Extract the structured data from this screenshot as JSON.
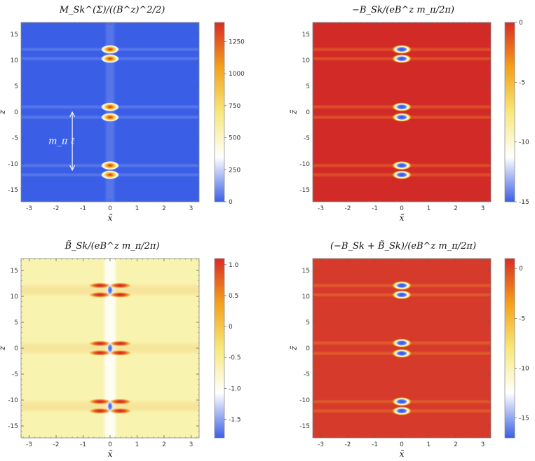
{
  "figure": {
    "layout": "2x2 density-plot grid"
  },
  "chart_data": [
    {
      "type": "heatmap",
      "title": "M_Sk^(Σ)/((B^z)^2/2)",
      "xlabel": "x̃",
      "ylabel": "z̃",
      "xlim": [
        -3.3,
        3.3
      ],
      "ylim": [
        -17.3,
        17.3
      ],
      "xticks": [
        "-3",
        "-2",
        "-1",
        "0",
        "1",
        "2",
        "3"
      ],
      "xtick_values": [
        -3,
        -2,
        -1,
        0,
        1,
        2,
        3
      ],
      "yticks": [
        "-15",
        "-10",
        "-5",
        "0",
        "5",
        "10",
        "15"
      ],
      "ytick_values": [
        -15,
        -10,
        -5,
        0,
        5,
        10,
        15
      ],
      "colorbar": {
        "min": 0,
        "max": 1400,
        "stops": [
          "#3a5fe6",
          "#ffffff",
          "#f7e87a",
          "#f4a11a",
          "#d92b25"
        ],
        "ticks": [
          "0",
          "250",
          "500",
          "750",
          "1000",
          "1250"
        ],
        "tick_values": [
          0,
          250,
          500,
          750,
          1000,
          1250
        ]
      },
      "background": "#3a5fe6",
      "features": [
        {
          "z": 12.1,
          "kind": "hot"
        },
        {
          "z": 10.3,
          "kind": "hot"
        },
        {
          "z": 1.0,
          "kind": "hot"
        },
        {
          "z": -1.0,
          "kind": "hot"
        },
        {
          "z": -10.3,
          "kind": "hot"
        },
        {
          "z": -12.1,
          "kind": "hot"
        }
      ],
      "annotation": {
        "text": "m_π ℓ",
        "arrow_x": -1.4,
        "arrow_from_z": 0,
        "arrow_to_z": -11.2
      }
    },
    {
      "type": "heatmap",
      "title": "−B_Sk/(eB^z m_π/2π)",
      "xlabel": "x̃",
      "ylabel": "z̃",
      "xlim": [
        -3.3,
        3.3
      ],
      "ylim": [
        -17.3,
        17.3
      ],
      "xticks": [
        "-3",
        "-2",
        "-1",
        "0",
        "1",
        "2",
        "3"
      ],
      "xtick_values": [
        -3,
        -2,
        -1,
        0,
        1,
        2,
        3
      ],
      "yticks": [
        "-15",
        "-10",
        "-5",
        "0",
        "5",
        "10",
        "15"
      ],
      "ytick_values": [
        -15,
        -10,
        -5,
        0,
        5,
        10,
        15
      ],
      "colorbar": {
        "min": -15,
        "max": 0,
        "stops": [
          "#3a5fe6",
          "#ffffff",
          "#f7e87a",
          "#f4a11a",
          "#d92b25"
        ],
        "ticks": [
          "-15",
          "-10",
          "-5",
          "0"
        ],
        "tick_values": [
          -15,
          -10,
          -5,
          0
        ]
      },
      "background": "#d22a27",
      "features": [
        {
          "z": 12.1,
          "kind": "cold"
        },
        {
          "z": 10.3,
          "kind": "cold"
        },
        {
          "z": 1.0,
          "kind": "cold"
        },
        {
          "z": -1.0,
          "kind": "cold"
        },
        {
          "z": -10.3,
          "kind": "cold"
        },
        {
          "z": -12.1,
          "kind": "cold"
        }
      ]
    },
    {
      "type": "heatmap",
      "title": "B̃_Sk/(eB^z m_π/2π)",
      "xlabel": "x̃",
      "ylabel": "z̃",
      "xlim": [
        -3.3,
        3.3
      ],
      "ylim": [
        -17.3,
        17.3
      ],
      "xticks": [
        "-3",
        "-2",
        "-1",
        "0",
        "1",
        "2",
        "3"
      ],
      "xtick_values": [
        -3,
        -2,
        -1,
        0,
        1,
        2,
        3
      ],
      "yticks": [
        "-15",
        "-10",
        "-5",
        "0",
        "5",
        "10",
        "15"
      ],
      "ytick_values": [
        -15,
        -10,
        -5,
        0,
        5,
        10,
        15
      ],
      "colorbar": {
        "min": -1.8,
        "max": 1.1,
        "stops": [
          "#3a5fe6",
          "#ffffff",
          "#f7e87a",
          "#f4a11a",
          "#d92b25"
        ],
        "ticks": [
          "-1.5",
          "-1.0",
          "-0.5",
          "0",
          "0.5",
          "1.0"
        ],
        "tick_values": [
          -1.5,
          -1.0,
          -0.5,
          0,
          0.5,
          1.0
        ]
      },
      "background": "#f8f3ae",
      "features": [
        {
          "z": 11.2,
          "kind": "lobes"
        },
        {
          "z": 0.0,
          "kind": "lobes"
        },
        {
          "z": -11.2,
          "kind": "lobes"
        }
      ]
    },
    {
      "type": "heatmap",
      "title": "(−B_Sk + B̃_Sk)/(eB^z m_π/2π)",
      "xlabel": "x̃",
      "ylabel": "z̃",
      "xlim": [
        -3.3,
        3.3
      ],
      "ylim": [
        -17.3,
        17.3
      ],
      "xticks": [
        "-3",
        "-2",
        "-1",
        "0",
        "1",
        "2",
        "3"
      ],
      "xtick_values": [
        -3,
        -2,
        -1,
        0,
        1,
        2,
        3
      ],
      "yticks": [
        "-15",
        "-10",
        "-5",
        "0",
        "5",
        "10",
        "15"
      ],
      "ytick_values": [
        -15,
        -10,
        -5,
        0,
        5,
        10,
        15
      ],
      "colorbar": {
        "min": -17,
        "max": 1,
        "stops": [
          "#3a5fe6",
          "#ffffff",
          "#f7e87a",
          "#f4a11a",
          "#d92b25"
        ],
        "ticks": [
          "-15",
          "-10",
          "-5",
          "0"
        ],
        "tick_values": [
          -15,
          -10,
          -5,
          0
        ]
      },
      "background": "#d63a2a",
      "features": [
        {
          "z": 12.1,
          "kind": "cold"
        },
        {
          "z": 10.3,
          "kind": "cold"
        },
        {
          "z": 1.0,
          "kind": "cold"
        },
        {
          "z": -1.0,
          "kind": "cold"
        },
        {
          "z": -10.3,
          "kind": "cold"
        },
        {
          "z": -12.1,
          "kind": "cold"
        }
      ]
    }
  ]
}
